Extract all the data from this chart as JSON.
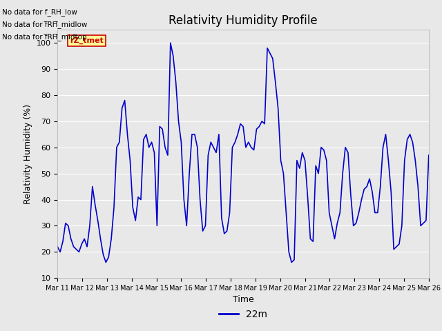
{
  "title": "Relativity Humidity Profile",
  "xlabel": "Time",
  "ylabel": "Relativity Humidity (%)",
  "ylim": [
    10,
    105
  ],
  "yticks": [
    10,
    20,
    30,
    40,
    50,
    60,
    70,
    80,
    90,
    100
  ],
  "line_color": "#0000CC",
  "line_width": 1.2,
  "bg_color": "#E8E8E8",
  "legend_label": "22m",
  "legend_color": "#0000CC",
  "no_data_texts": [
    "No data for f_RH_low",
    "No data for f̅RH̅_midlow",
    "No data for f̅RH̅_midtop"
  ],
  "annotation_text": "rZ_tmet",
  "annotation_bg": "#FFFF99",
  "annotation_border": "#CC0000",
  "x_tick_labels": [
    "Mar 11",
    "Mar 12",
    "Mar 13",
    "Mar 14",
    "Mar 15",
    "Mar 16",
    "Mar 17",
    "Mar 18",
    "Mar 19",
    "Mar 20",
    "Mar 21",
    "Mar 22",
    "Mar 23",
    "Mar 24",
    "Mar 25",
    "Mar 26"
  ],
  "y_values": [
    22,
    20,
    24,
    31,
    30,
    25,
    22,
    21,
    20,
    23,
    25,
    22,
    30,
    45,
    38,
    32,
    25,
    19,
    16,
    18,
    25,
    37,
    60,
    62,
    75,
    78,
    65,
    55,
    37,
    32,
    41,
    40,
    63,
    65,
    60,
    62,
    58,
    30,
    68,
    67,
    60,
    57,
    100,
    95,
    85,
    70,
    62,
    40,
    30,
    50,
    65,
    65,
    60,
    40,
    28,
    30,
    57,
    62,
    60,
    58,
    65,
    33,
    27,
    28,
    35,
    60,
    62,
    65,
    69,
    68,
    60,
    62,
    60,
    59,
    67,
    68,
    70,
    69,
    98,
    96,
    94,
    85,
    75,
    55,
    50,
    35,
    20,
    16,
    17,
    55,
    52,
    58,
    55,
    41,
    25,
    24,
    53,
    50,
    60,
    59,
    55,
    35,
    30,
    25,
    31,
    35,
    50,
    60,
    58,
    42,
    30,
    31,
    35,
    40,
    44,
    45,
    48,
    43,
    35,
    35,
    45,
    60,
    65,
    55,
    43,
    21,
    22,
    23,
    30,
    55,
    63,
    65,
    62,
    55,
    45,
    30,
    31,
    32,
    57
  ]
}
